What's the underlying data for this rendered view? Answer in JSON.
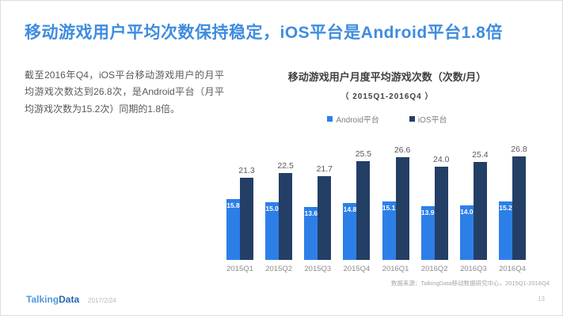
{
  "slide": {
    "title": "移动游戏用户平均次数保持稳定，iOS平台是Android平台1.8倍",
    "description": "截至2016年Q4，iOS平台移动游戏用户的月平均游戏次数达到26.8次，是Android平台（月平均游戏次数为15.2次）同期的1.8倍。",
    "footer": {
      "logo_talking": "Talking",
      "logo_data": "Data",
      "date": "2017/2/24",
      "page_number": "13"
    }
  },
  "chart_data": {
    "type": "bar",
    "title": "移动游戏用户月度平均游戏次数（次数/月）",
    "subtitle": "（ 2015Q1-2016Q4 ）",
    "categories": [
      "2015Q1",
      "2015Q2",
      "2015Q3",
      "2015Q4",
      "2016Q1",
      "2016Q2",
      "2016Q3",
      "2016Q4"
    ],
    "series": [
      {
        "name": "Android平台",
        "color": "#2d7fe8",
        "values": [
          15.8,
          15.0,
          13.6,
          14.8,
          15.1,
          13.9,
          14.0,
          15.2
        ],
        "labels": [
          "15.8",
          "15.0",
          "13.6",
          "14.8",
          "15.1",
          "13.9",
          "14.0",
          "15.2"
        ],
        "value_label_position": "inside-top",
        "value_label_color": "#ffffff"
      },
      {
        "name": "iOS平台",
        "color": "#243f66",
        "values": [
          21.3,
          22.5,
          21.7,
          25.5,
          26.6,
          24.0,
          25.4,
          26.8
        ],
        "labels": [
          "21.3",
          "22.5",
          "21.7",
          "25.5",
          "26.6",
          "24.0",
          "25.4",
          "26.8"
        ],
        "value_label_position": "above",
        "value_label_color": "#595959"
      }
    ],
    "ylim": [
      0,
      28
    ],
    "grid": false,
    "legend_position": "top",
    "source": "数据来源：TalkingData移动数据研究中心，2015Q1-2016Q4"
  }
}
